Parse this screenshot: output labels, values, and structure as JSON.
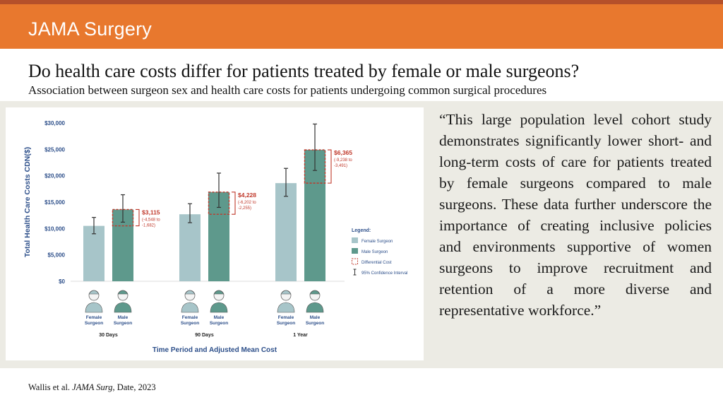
{
  "journal": "JAMA Surgery",
  "title": "Do health care costs differ for patients treated by female or male surgeons?",
  "subtitle": "Association between surgeon sex and health care costs for patients undergoing common surgical procedures",
  "quote": "“This large population level cohort study demonstrates significantly lower short- and long-term costs of care for patients treated by female surgeons compared to male surgeons. These data further underscore the importance of creating inclusive policies and environments supportive of women surgeons to improve recruitment and retention of a more diverse and representative workforce.”",
  "footer": {
    "authors": "Wallis et al. ",
    "journal": "JAMA Surg",
    "rest": ", Date, 2023"
  },
  "colors": {
    "header": "#e8782e",
    "female": "#a7c5c9",
    "male": "#5e998c",
    "diff": "#c0392b",
    "axis": "#2d4f8a"
  },
  "chart_data": {
    "type": "bar",
    "ylabel": "Total Health Care Costs CDN($)",
    "xlabel": "Time Period and Adjusted Mean Cost",
    "ylim": [
      0,
      30000
    ],
    "yticks": [
      "$0",
      "$5,000",
      "$10,000",
      "$15,000",
      "$20,000",
      "$25,000",
      "$30,000"
    ],
    "categories": [
      "30 Days",
      "90 Days",
      "1 Year"
    ],
    "bar_labels": [
      "Female Surgeon",
      "Male Surgeon"
    ],
    "series": [
      {
        "name": "Female Surgeon",
        "values": [
          10500,
          12700,
          18600
        ],
        "ci_low": [
          9000,
          11100,
          16100
        ],
        "ci_high": [
          12100,
          14700,
          21400
        ]
      },
      {
        "name": "Male Surgeon",
        "values": [
          13600,
          16900,
          24900
        ],
        "ci_low": [
          11200,
          14000,
          21000
        ],
        "ci_high": [
          16400,
          20500,
          29800
        ]
      }
    ],
    "differential": [
      {
        "value": "$3,115",
        "ci": [
          "(-4,548 to",
          "-1,682)"
        ]
      },
      {
        "value": "$4,228",
        "ci": [
          "(-6,202 to",
          "-2,255)"
        ]
      },
      {
        "value": "$6,365",
        "ci": [
          "(-9,238 to",
          "-3,491)"
        ]
      }
    ],
    "legend": {
      "title": "Legend:",
      "items": [
        "Female Surgeon",
        "Male Surgeon",
        "Differential Cost",
        "95% Confidence Interval"
      ],
      "position": "right"
    }
  }
}
